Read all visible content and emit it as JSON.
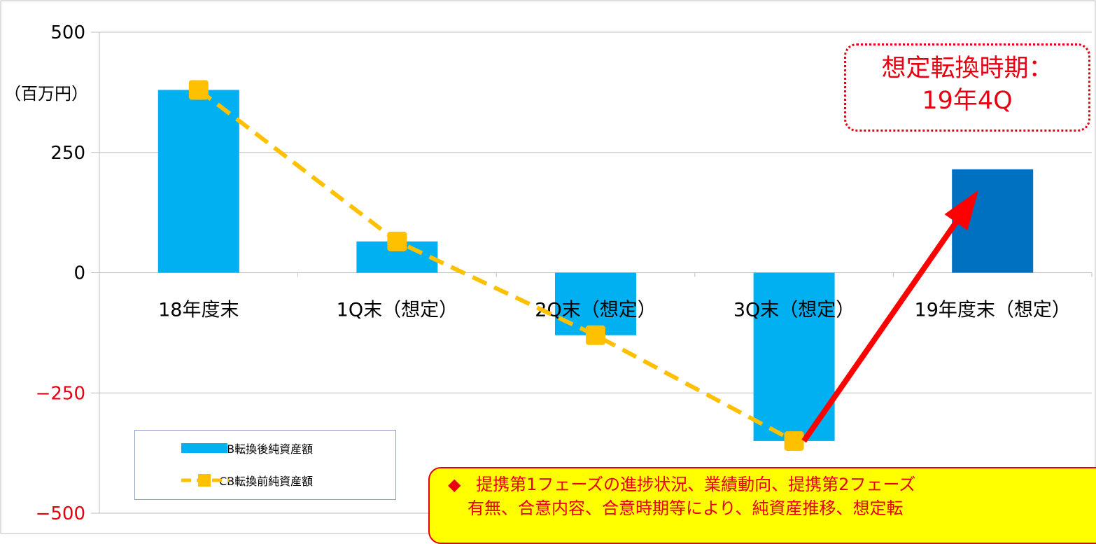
{
  "chart_data": {
    "type": "bar",
    "unit_label": "（百万円）",
    "categories": [
      "18年度末",
      "1Q末（想定）",
      "2Q末（想定）",
      "3Q末（想定）",
      "19年度末（想定）"
    ],
    "ylim": [
      -500,
      500
    ],
    "yticks": [
      500,
      250,
      0,
      -250,
      -500
    ],
    "grid": true,
    "series": [
      {
        "name": "CB転換後純資産額",
        "kind": "bar",
        "color": "#00b0f0",
        "highlight_color": "#0070c0",
        "highlight_index": 4,
        "values": [
          380,
          65,
          -130,
          -350,
          215
        ]
      },
      {
        "name": "CB転換前純資産額",
        "kind": "line",
        "color": "#ffc000",
        "style": "dashed",
        "values": [
          380,
          65,
          -130,
          -350,
          null
        ]
      }
    ],
    "legend_position": "bottom-left",
    "axis_colors": {
      "positive": "#000000",
      "negative": "#e60012"
    }
  },
  "callout": {
    "line1": "想定転換時期：",
    "line2": "19年4Q",
    "color": "#e60012"
  },
  "note": {
    "bullet": "◆",
    "line1": "提携第1フェーズの進捗状況、業績動向、提携第2フェーズ",
    "line2": "有無、合意内容、合意時期等により、純資産推移、想定転"
  },
  "arrow": {
    "color": "#ff0000"
  }
}
